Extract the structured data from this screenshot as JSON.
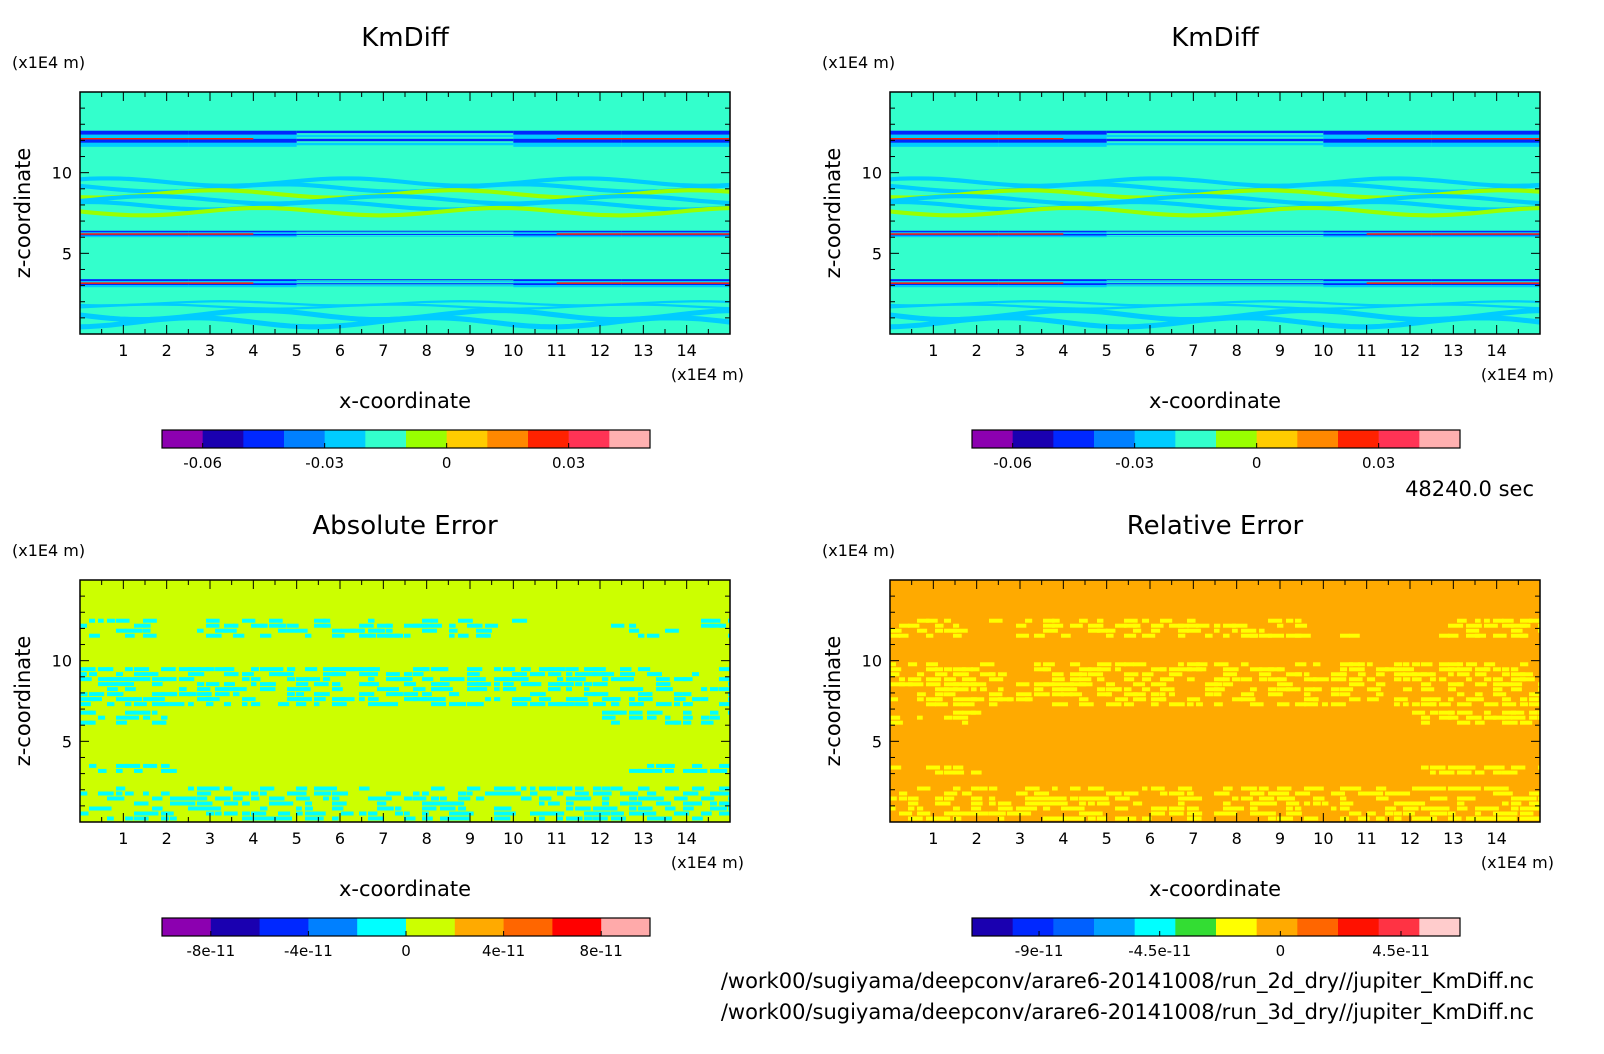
{
  "time_label": "48240.0 sec",
  "file_paths": [
    "/work00/sugiyama/deepconv/arare6-20141008/run_2d_dry//jupiter_KmDiff.nc",
    "/work00/sugiyama/deepconv/arare6-20141008/run_3d_dry//jupiter_KmDiff.nc"
  ],
  "chart_data": [
    {
      "type": "heatmap",
      "title": "KmDiff",
      "xlabel": "x-coordinate",
      "ylabel": "z-coordinate",
      "x_unit": "(x1E4 m)",
      "y_unit": "(x1E4 m)",
      "xlim": [
        0,
        15
      ],
      "ylim": [
        0,
        15
      ],
      "x_ticks": [
        1,
        2,
        3,
        4,
        5,
        6,
        7,
        8,
        9,
        10,
        11,
        12,
        13,
        14
      ],
      "y_ticks": [
        5,
        10
      ],
      "background_level": 5,
      "bands": [
        {
          "z": [
            0.5,
            1.4
          ],
          "level": 4,
          "pattern": "wavy"
        },
        {
          "z": [
            1.6,
            2.0
          ],
          "level": 4,
          "pattern": "wavy"
        },
        {
          "z": [
            2.9,
            3.4
          ],
          "level": 3,
          "pattern": "stripes"
        },
        {
          "z": [
            6.0,
            6.4
          ],
          "level": 3,
          "pattern": "stripes"
        },
        {
          "z": [
            7.4,
            9.6
          ],
          "level": 4,
          "pattern": "wavy"
        },
        {
          "z": [
            11.6,
            12.6
          ],
          "level": 3,
          "pattern": "stripes"
        }
      ],
      "colorbar": {
        "colors": [
          "#8c00b0",
          "#1a00b0",
          "#0028ff",
          "#0080ff",
          "#00ccff",
          "#33ffcc",
          "#99ff00",
          "#ffcc00",
          "#ff8800",
          "#ff2200",
          "#ff3355",
          "#ffb0b0"
        ],
        "ticks": [
          -0.06,
          -0.03,
          0,
          0.03
        ],
        "tick_labels": [
          "-0.06",
          "-0.03",
          "0",
          "0.03"
        ],
        "range": [
          -0.07,
          0.05
        ]
      }
    },
    {
      "type": "heatmap",
      "title": "KmDiff",
      "xlabel": "x-coordinate",
      "ylabel": "z-coordinate",
      "x_unit": "(x1E4 m)",
      "y_unit": "(x1E4 m)",
      "xlim": [
        0,
        15
      ],
      "ylim": [
        0,
        15
      ],
      "x_ticks": [
        1,
        2,
        3,
        4,
        5,
        6,
        7,
        8,
        9,
        10,
        11,
        12,
        13,
        14
      ],
      "y_ticks": [
        5,
        10
      ],
      "background_level": 5,
      "bands": [
        {
          "z": [
            0.5,
            1.4
          ],
          "level": 4,
          "pattern": "wavy"
        },
        {
          "z": [
            1.6,
            2.0
          ],
          "level": 4,
          "pattern": "wavy"
        },
        {
          "z": [
            2.9,
            3.4
          ],
          "level": 3,
          "pattern": "stripes"
        },
        {
          "z": [
            6.0,
            6.4
          ],
          "level": 3,
          "pattern": "stripes"
        },
        {
          "z": [
            7.4,
            9.6
          ],
          "level": 4,
          "pattern": "wavy"
        },
        {
          "z": [
            11.6,
            12.6
          ],
          "level": 3,
          "pattern": "stripes"
        }
      ],
      "colorbar": {
        "colors": [
          "#8c00b0",
          "#1a00b0",
          "#0028ff",
          "#0080ff",
          "#00ccff",
          "#33ffcc",
          "#99ff00",
          "#ffcc00",
          "#ff8800",
          "#ff2200",
          "#ff3355",
          "#ffb0b0"
        ],
        "ticks": [
          -0.06,
          -0.03,
          0,
          0.03
        ],
        "tick_labels": [
          "-0.06",
          "-0.03",
          "0",
          "0.03"
        ],
        "range": [
          -0.07,
          0.05
        ]
      }
    },
    {
      "type": "heatmap",
      "title": "Absolute Error",
      "xlabel": "x-coordinate",
      "ylabel": "z-coordinate",
      "x_unit": "(x1E4 m)",
      "y_unit": "(x1E4 m)",
      "xlim": [
        0,
        15
      ],
      "ylim": [
        0,
        15
      ],
      "x_ticks": [
        1,
        2,
        3,
        4,
        5,
        6,
        7,
        8,
        9,
        10,
        11,
        12,
        13,
        14
      ],
      "y_ticks": [
        5,
        10
      ],
      "background_level": 5,
      "bands": [
        {
          "z": [
            0.2,
            2.2
          ],
          "level": 4,
          "pattern": "blobs"
        },
        {
          "z": [
            3.0,
            3.6
          ],
          "level": 4,
          "pattern": "blobs-edge"
        },
        {
          "z": [
            6.2,
            6.9
          ],
          "level": 4,
          "pattern": "blobs-edge"
        },
        {
          "z": [
            7.2,
            9.6
          ],
          "level": 4,
          "pattern": "blobs"
        },
        {
          "z": [
            11.6,
            12.6
          ],
          "level": 4,
          "pattern": "blobs-sparse"
        }
      ],
      "colorbar": {
        "colors": [
          "#8c00b0",
          "#1a00b0",
          "#0028ff",
          "#0080ff",
          "#00ffff",
          "#ccff00",
          "#ffaa00",
          "#ff6600",
          "#ff0000",
          "#ffaaaa"
        ],
        "ticks": [
          -8e-11,
          -4e-11,
          0,
          4e-11,
          8e-11
        ],
        "tick_labels": [
          "-8e-11",
          "-4e-11",
          "0",
          "4e-11",
          "8e-11"
        ],
        "range": [
          -1e-10,
          1e-10
        ]
      }
    },
    {
      "type": "heatmap",
      "title": "Relative Error",
      "xlabel": "x-coordinate",
      "ylabel": "z-coordinate",
      "x_unit": "(x1E4 m)",
      "y_unit": "(x1E4 m)",
      "xlim": [
        0,
        15
      ],
      "ylim": [
        0,
        15
      ],
      "x_ticks": [
        1,
        2,
        3,
        4,
        5,
        6,
        7,
        8,
        9,
        10,
        11,
        12,
        13,
        14
      ],
      "y_ticks": [
        5,
        10
      ],
      "background_level": 7,
      "bands": [
        {
          "z": [
            0.2,
            2.2
          ],
          "level": 6,
          "pattern": "blobs"
        },
        {
          "z": [
            2.9,
            3.5
          ],
          "level": 6,
          "pattern": "blobs-edge"
        },
        {
          "z": [
            6.2,
            6.9
          ],
          "level": 6,
          "pattern": "blobs-edge"
        },
        {
          "z": [
            7.2,
            9.9
          ],
          "level": 6,
          "pattern": "blobs"
        },
        {
          "z": [
            11.6,
            12.6
          ],
          "level": 6,
          "pattern": "blobs-sparse"
        }
      ],
      "colorbar": {
        "colors": [
          "#1a00b0",
          "#0028ff",
          "#0060ff",
          "#00a0ff",
          "#00ffff",
          "#33dd33",
          "#ffff00",
          "#ffaa00",
          "#ff6600",
          "#ff1100",
          "#ff3344",
          "#ffcccc"
        ],
        "ticks": [
          -9e-11,
          -4.5e-11,
          0,
          4.5e-11
        ],
        "tick_labels": [
          "-9e-11",
          "-4.5e-11",
          "0",
          "4.5e-11"
        ],
        "range": [
          -1.15e-10,
          6.7e-11
        ]
      }
    }
  ]
}
